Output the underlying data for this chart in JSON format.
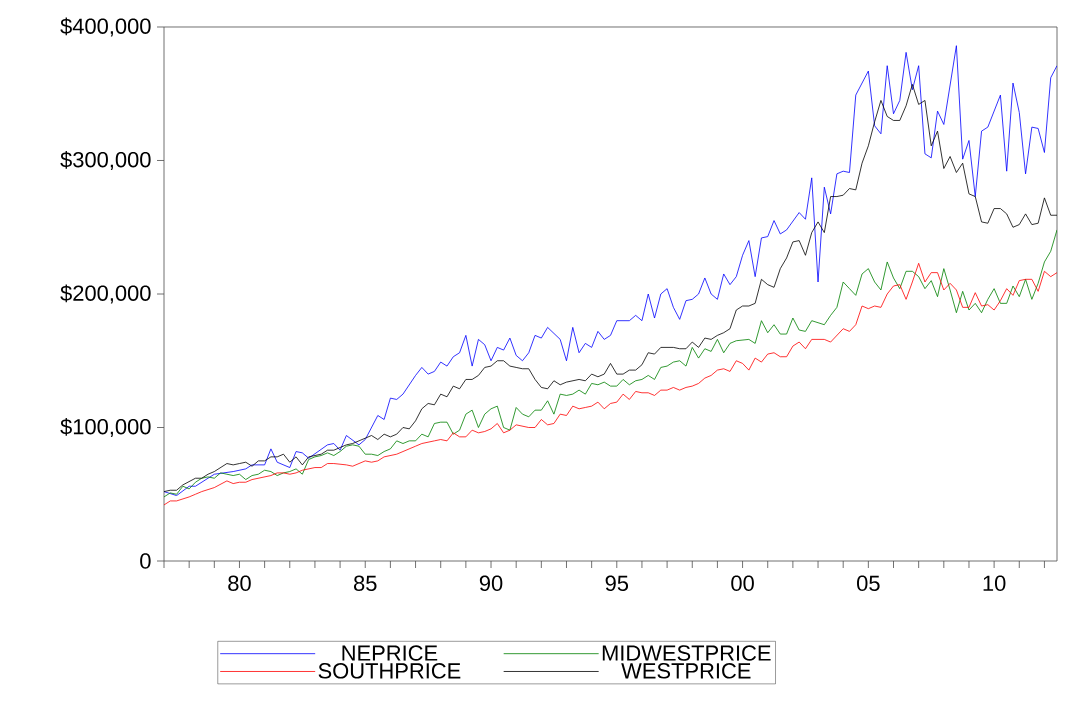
{
  "chart_data": {
    "type": "line",
    "xlim": [
      1977,
      2012.5
    ],
    "ylim": [
      0,
      400000
    ],
    "xticks": [
      {
        "value": 1977,
        "label": null
      },
      {
        "value": 1978,
        "label": null
      },
      {
        "value": 1979,
        "label": null
      },
      {
        "value": 1980,
        "label": "80"
      },
      {
        "value": 1981,
        "label": null
      },
      {
        "value": 1982,
        "label": null
      },
      {
        "value": 1983,
        "label": null
      },
      {
        "value": 1984,
        "label": null
      },
      {
        "value": 1985,
        "label": "85"
      },
      {
        "value": 1986,
        "label": null
      },
      {
        "value": 1987,
        "label": null
      },
      {
        "value": 1988,
        "label": null
      },
      {
        "value": 1989,
        "label": null
      },
      {
        "value": 1990,
        "label": "90"
      },
      {
        "value": 1991,
        "label": null
      },
      {
        "value": 1992,
        "label": null
      },
      {
        "value": 1993,
        "label": null
      },
      {
        "value": 1994,
        "label": null
      },
      {
        "value": 1995,
        "label": "95"
      },
      {
        "value": 1996,
        "label": null
      },
      {
        "value": 1997,
        "label": null
      },
      {
        "value": 1998,
        "label": null
      },
      {
        "value": 1999,
        "label": null
      },
      {
        "value": 2000,
        "label": "00"
      },
      {
        "value": 2001,
        "label": null
      },
      {
        "value": 2002,
        "label": null
      },
      {
        "value": 2003,
        "label": null
      },
      {
        "value": 2004,
        "label": null
      },
      {
        "value": 2005,
        "label": "05"
      },
      {
        "value": 2006,
        "label": null
      },
      {
        "value": 2007,
        "label": null
      },
      {
        "value": 2008,
        "label": null
      },
      {
        "value": 2009,
        "label": null
      },
      {
        "value": 2010,
        "label": "10"
      },
      {
        "value": 2011,
        "label": null
      },
      {
        "value": 2012,
        "label": null
      }
    ],
    "yticks": [
      0,
      {
        "value": 100000,
        "label": "$100,000"
      },
      {
        "value": 200000,
        "label": "$200,000"
      },
      {
        "value": 300000,
        "label": "$300,000"
      },
      {
        "value": 400000,
        "label": "$400,000"
      }
    ],
    "legend": "bottom",
    "marker": "none",
    "line_style": "solid",
    "series": [
      {
        "name": "NEPRICE",
        "color": "#0000ff",
        "x": [
          1977,
          1977.5,
          1978,
          1978.25,
          1979,
          1979.75,
          1980.25,
          1980.5,
          1981,
          1981.25,
          1981.5,
          1982,
          1982.25,
          1982.5,
          1982.75,
          1983.5,
          1983.75,
          1984,
          1984.25,
          1984.75,
          1985,
          1985.5,
          1985.75,
          1986,
          1986.25,
          1986.5,
          1987,
          1987.25,
          1987.5,
          1987.75,
          1988,
          1988.25,
          1988.5,
          1988.75,
          1989,
          1989.25,
          1989.5,
          1989.75,
          1990,
          1990.25,
          1990.5,
          1990.75,
          1991,
          1991.25,
          1991.5,
          1991.75,
          1992,
          1992.25,
          1992.75,
          1993,
          1993.25,
          1993.5,
          1993.75,
          1994,
          1994.25,
          1994.5,
          1994.75,
          1995,
          1995.5,
          1995.75,
          1996,
          1996.25,
          1996.5,
          1996.75,
          1997,
          1997.25,
          1997.5,
          1997.75,
          1998,
          1998.25,
          1998.5,
          1998.75,
          1999,
          1999.25,
          1999.5,
          1999.75,
          2000,
          2000.25,
          2000.5,
          2000.75,
          2001,
          2001.25,
          2001.5,
          2001.75,
          2002.25,
          2002.5,
          2002.75,
          2003,
          2003.25,
          2003.5,
          2003.75,
          2004,
          2004.25,
          2004.5,
          2005,
          2005.25,
          2005.5,
          2005.75,
          2006,
          2006.25,
          2006.5,
          2006.75,
          2007,
          2007.25,
          2007.5,
          2007.75,
          2008,
          2008.5,
          2008.75,
          2009,
          2009.25,
          2009.5,
          2009.75,
          2010.25,
          2010.5,
          2010.75,
          2011,
          2011.25,
          2011.5,
          2011.75,
          2012,
          2012.25,
          2012.5
        ],
        "values": [
          52000,
          49000,
          56000,
          56000,
          65000,
          67000,
          69000,
          72000,
          72000,
          84000,
          74000,
          70000,
          82000,
          81000,
          77000,
          87000,
          88000,
          83000,
          94000,
          87000,
          91000,
          109000,
          106000,
          122000,
          121000,
          125000,
          139000,
          145000,
          140000,
          142000,
          149000,
          146000,
          153000,
          156000,
          169000,
          146000,
          166000,
          162000,
          150000,
          160000,
          158000,
          167000,
          154000,
          150000,
          156000,
          169000,
          167000,
          175000,
          166000,
          150000,
          175000,
          156000,
          163000,
          160000,
          172000,
          166000,
          169000,
          180000,
          180000,
          184000,
          180000,
          200000,
          182000,
          200000,
          204000,
          190000,
          181000,
          195000,
          196000,
          200000,
          212000,
          200000,
          196000,
          215000,
          207000,
          213000,
          229000,
          240000,
          213000,
          242000,
          243000,
          255000,
          245000,
          248000,
          261000,
          256000,
          287000,
          209000,
          280000,
          260000,
          290000,
          292000,
          291000,
          349000,
          367000,
          326000,
          320000,
          371000,
          335000,
          345000,
          381000,
          353000,
          371000,
          305000,
          302000,
          337000,
          327000,
          386000,
          301000,
          315000,
          273000,
          322000,
          325000,
          349000,
          292000,
          358000,
          336000,
          290000,
          325000,
          324000,
          306000,
          362000,
          371000
        ]
      },
      {
        "name": "MIDWESTPRICE",
        "color": "#008000",
        "x": [
          1977,
          1977.25,
          1977.5,
          1977.75,
          1978,
          1978.25,
          1978.5,
          1978.75,
          1979,
          1979.25,
          1979.5,
          1979.75,
          1980,
          1980.25,
          1980.5,
          1980.75,
          1981,
          1981.25,
          1981.5,
          1981.75,
          1982,
          1982.25,
          1982.5,
          1982.75,
          1983,
          1983.25,
          1983.5,
          1983.75,
          1984,
          1984.25,
          1984.5,
          1984.75,
          1985,
          1985.25,
          1985.5,
          1985.75,
          1986,
          1986.25,
          1986.5,
          1986.75,
          1987,
          1987.25,
          1987.5,
          1987.75,
          1988,
          1988.25,
          1988.5,
          1988.75,
          1989,
          1989.25,
          1989.5,
          1989.75,
          1990,
          1990.25,
          1990.5,
          1990.75,
          1991,
          1991.25,
          1991.5,
          1991.75,
          1992,
          1992.25,
          1992.5,
          1992.75,
          1993,
          1993.25,
          1993.5,
          1993.75,
          1994,
          1994.25,
          1994.5,
          1994.75,
          1995,
          1995.25,
          1995.5,
          1995.75,
          1996,
          1996.25,
          1996.5,
          1996.75,
          1997,
          1997.25,
          1997.5,
          1997.75,
          1998,
          1998.25,
          1998.5,
          1998.75,
          1999,
          1999.25,
          1999.5,
          1999.75,
          2000.25,
          2000.5,
          2000.75,
          2001,
          2001.25,
          2001.5,
          2001.75,
          2002,
          2002.25,
          2002.5,
          2002.75,
          2003.25,
          2003.5,
          2003.75,
          2004,
          2004.25,
          2004.5,
          2004.75,
          2005,
          2005.25,
          2005.5,
          2005.75,
          2006,
          2006.25,
          2006.5,
          2006.75,
          2007,
          2007.25,
          2007.5,
          2007.75,
          2008,
          2008.25,
          2008.5,
          2008.75,
          2009,
          2009.25,
          2009.5,
          2009.75,
          2010,
          2010.25,
          2010.5,
          2010.75,
          2011,
          2011.25,
          2011.5,
          2011.75,
          2012,
          2012.25,
          2012.5
        ],
        "values": [
          48000,
          51000,
          50000,
          56000,
          54000,
          59000,
          62000,
          63000,
          62000,
          66000,
          65000,
          64000,
          65000,
          61000,
          64000,
          65000,
          68000,
          67000,
          64000,
          66000,
          67000,
          69000,
          65000,
          76000,
          78000,
          79000,
          81000,
          79000,
          82000,
          86000,
          87000,
          86000,
          80000,
          80000,
          79000,
          82000,
          84000,
          90000,
          88000,
          90000,
          90000,
          95000,
          93000,
          103000,
          104000,
          104000,
          95000,
          98000,
          110000,
          113000,
          100000,
          110000,
          114000,
          116000,
          100000,
          98000,
          115000,
          110000,
          108000,
          113000,
          113000,
          120000,
          110000,
          125000,
          124000,
          125000,
          128000,
          125000,
          133000,
          132000,
          134000,
          131000,
          131000,
          136000,
          132000,
          135000,
          136000,
          139000,
          136000,
          145000,
          146000,
          149000,
          150000,
          146000,
          160000,
          152000,
          159000,
          157000,
          166000,
          156000,
          163000,
          165000,
          166000,
          163000,
          180000,
          171000,
          177000,
          170000,
          170000,
          182000,
          173000,
          172000,
          180000,
          177000,
          184000,
          190000,
          209000,
          204000,
          199000,
          215000,
          219000,
          209000,
          203000,
          224000,
          212000,
          204000,
          217000,
          217000,
          213000,
          204000,
          210000,
          198000,
          219000,
          203000,
          186000,
          202000,
          188000,
          193000,
          186000,
          196000,
          204000,
          193000,
          193000,
          206000,
          198000,
          211000,
          196000,
          208000,
          224000,
          232000,
          248000
        ]
      },
      {
        "name": "SOUTHPRICE",
        "color": "#ff0000",
        "x": [
          1977,
          1977.25,
          1977.5,
          1978,
          1978.25,
          1978.5,
          1979,
          1979.5,
          1979.75,
          1980,
          1980.25,
          1980.5,
          1980.75,
          1981.25,
          1981.5,
          1981.75,
          1982,
          1982.25,
          1982.5,
          1983,
          1983.25,
          1983.5,
          1983.75,
          1984.25,
          1984.5,
          1985,
          1985.25,
          1985.5,
          1985.75,
          1986,
          1986.25,
          1986.5,
          1986.75,
          1987,
          1987.25,
          1987.75,
          1988,
          1988.25,
          1988.5,
          1988.75,
          1989,
          1989.25,
          1989.5,
          1989.75,
          1990,
          1990.25,
          1990.5,
          1990.75,
          1991,
          1991.25,
          1991.5,
          1991.75,
          1992,
          1992.25,
          1992.5,
          1992.75,
          1993,
          1993.25,
          1993.5,
          1993.75,
          1994,
          1994.25,
          1994.5,
          1994.75,
          1995,
          1995.25,
          1995.5,
          1995.75,
          1996,
          1996.25,
          1996.5,
          1996.75,
          1997,
          1997.25,
          1997.5,
          1997.75,
          1998,
          1998.25,
          1998.5,
          1998.75,
          1999,
          1999.25,
          1999.5,
          1999.75,
          2000,
          2000.25,
          2000.5,
          2000.75,
          2001,
          2001.25,
          2001.5,
          2001.75,
          2002,
          2002.25,
          2002.5,
          2002.75,
          2003,
          2003.25,
          2003.5,
          2003.75,
          2004,
          2004.25,
          2004.5,
          2004.75,
          2005,
          2005.25,
          2005.5,
          2005.75,
          2006,
          2006.25,
          2006.5,
          2006.75,
          2007,
          2007.25,
          2007.5,
          2007.75,
          2008,
          2008.25,
          2008.5,
          2008.75,
          2009,
          2009.25,
          2009.5,
          2009.75,
          2010,
          2010.25,
          2010.5,
          2010.75,
          2011,
          2011.25,
          2011.5,
          2011.75,
          2012,
          2012.25,
          2012.5
        ],
        "values": [
          42000,
          45000,
          45000,
          48000,
          50000,
          52000,
          55000,
          60000,
          58000,
          59000,
          59000,
          61000,
          62000,
          64000,
          66000,
          66000,
          65000,
          66000,
          68000,
          70000,
          70000,
          73000,
          73000,
          72000,
          71000,
          75000,
          74000,
          75000,
          78000,
          79000,
          80000,
          82000,
          84000,
          86000,
          88000,
          90000,
          91000,
          90000,
          96000,
          93000,
          93000,
          98000,
          96000,
          97000,
          99000,
          103000,
          96000,
          98000,
          102000,
          101000,
          100000,
          100000,
          106000,
          102000,
          103000,
          110000,
          109000,
          116000,
          114000,
          115000,
          116000,
          119000,
          114000,
          118000,
          119000,
          125000,
          121000,
          127000,
          126000,
          126000,
          124000,
          128000,
          128000,
          130000,
          128000,
          130000,
          131000,
          133000,
          137000,
          139000,
          143000,
          144000,
          142000,
          150000,
          148000,
          143000,
          152000,
          149000,
          155000,
          156000,
          153000,
          153000,
          161000,
          164000,
          159000,
          166000,
          166000,
          166000,
          164000,
          169000,
          174000,
          172000,
          177000,
          191000,
          189000,
          191000,
          190000,
          200000,
          206000,
          207000,
          196000,
          209000,
          223000,
          209000,
          216000,
          216000,
          203000,
          208000,
          203000,
          190000,
          190000,
          201000,
          191000,
          192000,
          188000,
          195000,
          204000,
          199000,
          210000,
          211000,
          211000,
          202000,
          217000,
          213000,
          216000
        ]
      },
      {
        "name": "WESTPRICE",
        "color": "#000000",
        "x": [
          1977,
          1977.25,
          1977.5,
          1977.75,
          1978.25,
          1978.5,
          1978.75,
          1979,
          1979.5,
          1979.75,
          1980,
          1980.25,
          1980.5,
          1980.75,
          1981,
          1981.25,
          1981.5,
          1981.75,
          1982,
          1982.25,
          1982.5,
          1982.75,
          1983,
          1983.25,
          1983.5,
          1983.75,
          1984,
          1984.25,
          1984.5,
          1985,
          1985.25,
          1985.5,
          1985.75,
          1986,
          1986.25,
          1986.5,
          1986.75,
          1987,
          1987.25,
          1987.5,
          1987.75,
          1988,
          1988.25,
          1988.5,
          1988.75,
          1989,
          1989.25,
          1989.5,
          1989.75,
          1990,
          1990.25,
          1990.5,
          1990.75,
          1991,
          1991.25,
          1991.5,
          1991.75,
          1992,
          1992.25,
          1992.5,
          1992.75,
          1993,
          1993.5,
          1993.75,
          1994,
          1994.25,
          1994.5,
          1994.75,
          1995,
          1995.25,
          1995.5,
          1995.75,
          1996,
          1996.25,
          1996.5,
          1996.75,
          1997.25,
          1997.5,
          1997.75,
          1998,
          1998.25,
          1998.5,
          1998.75,
          1999,
          1999.25,
          1999.5,
          1999.75,
          2000,
          2000.25,
          2000.5,
          2000.75,
          2001,
          2001.25,
          2001.5,
          2001.75,
          2002,
          2002.25,
          2002.5,
          2002.75,
          2003,
          2003.25,
          2003.5,
          2003.75,
          2004,
          2004.25,
          2004.5,
          2004.75,
          2005,
          2005.25,
          2005.5,
          2005.75,
          2006,
          2006.25,
          2006.5,
          2006.75,
          2007,
          2007.25,
          2007.5,
          2007.75,
          2008,
          2008.25,
          2008.5,
          2008.75,
          2009,
          2009.25,
          2009.5,
          2009.75,
          2010,
          2010.25,
          2010.5,
          2010.75,
          2011,
          2011.25,
          2011.5,
          2011.75,
          2012,
          2012.25,
          2012.5
        ],
        "values": [
          52000,
          53000,
          53000,
          57000,
          62000,
          62000,
          65000,
          67000,
          73000,
          72000,
          73000,
          74000,
          71000,
          75000,
          75000,
          78000,
          78000,
          80000,
          74000,
          78000,
          72000,
          78000,
          79000,
          80000,
          83000,
          83000,
          85000,
          87000,
          88000,
          92000,
          94000,
          91000,
          95000,
          93000,
          95000,
          100000,
          99000,
          105000,
          114000,
          118000,
          117000,
          125000,
          123000,
          131000,
          129000,
          136000,
          136000,
          139000,
          145000,
          146000,
          150000,
          150000,
          146000,
          145000,
          144000,
          144000,
          136000,
          130000,
          129000,
          135000,
          132000,
          134000,
          136000,
          135000,
          140000,
          138000,
          140000,
          148000,
          140000,
          140000,
          143000,
          143000,
          147000,
          156000,
          155000,
          160000,
          160000,
          159000,
          159000,
          164000,
          160000,
          167000,
          166000,
          169000,
          171000,
          174000,
          188000,
          191000,
          191000,
          193000,
          211000,
          207000,
          205000,
          219000,
          227000,
          239000,
          240000,
          229000,
          246000,
          254000,
          246000,
          273000,
          273000,
          274000,
          279000,
          278000,
          298000,
          311000,
          329000,
          345000,
          333000,
          330000,
          330000,
          341000,
          357000,
          342000,
          345000,
          311000,
          322000,
          294000,
          303000,
          291000,
          298000,
          275000,
          273000,
          254000,
          253000,
          264000,
          264000,
          260000,
          250000,
          252000,
          260000,
          252000,
          253000,
          272000,
          259000,
          259000
        ]
      }
    ]
  }
}
